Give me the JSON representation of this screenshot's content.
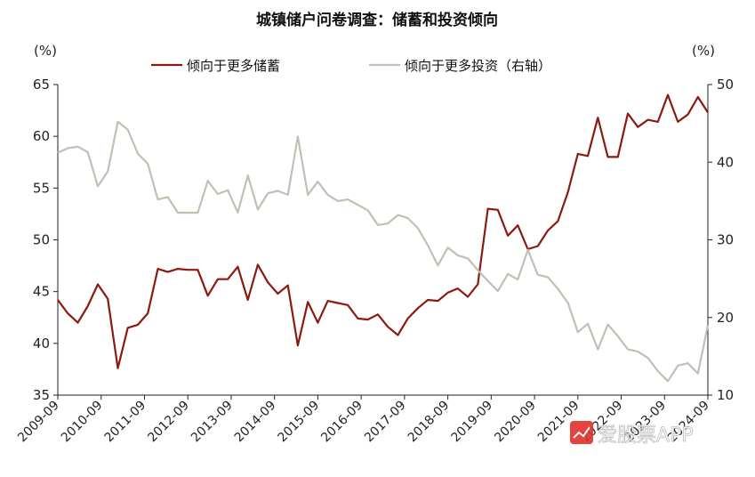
{
  "chart_data": {
    "type": "line",
    "title": "城镇储户问卷调查：储蓄和投资倾向",
    "left_unit": "(%)",
    "right_unit": "(%)",
    "ylim_left": [
      35,
      65
    ],
    "ylim_right": [
      10,
      50
    ],
    "yticks_left": [
      "35",
      "40",
      "45",
      "50",
      "55",
      "60",
      "65"
    ],
    "yticks_right": [
      "10",
      "20",
      "30",
      "40",
      "50"
    ],
    "x_tick_labels": [
      "2009-09",
      "2010-09",
      "2011-09",
      "2012-09",
      "2013-09",
      "2014-09",
      "2015-09",
      "2016-09",
      "2017-09",
      "2018-09",
      "2019-09",
      "2020-09",
      "2021-09",
      "2022-09",
      "2023-09",
      "2024-09"
    ],
    "legend_position": "top",
    "series": [
      {
        "name": "倾向于更多储蓄",
        "axis": "left",
        "color": "#8B1A10",
        "values": [
          44.2,
          42.9,
          42.0,
          43.6,
          45.7,
          44.3,
          37.6,
          41.5,
          41.8,
          42.9,
          47.2,
          46.9,
          47.2,
          47.1,
          47.1,
          44.6,
          46.2,
          46.2,
          47.4,
          44.2,
          47.6,
          45.9,
          44.8,
          45.6,
          39.8,
          44.0,
          42.0,
          44.1,
          43.9,
          43.7,
          42.4,
          42.3,
          42.8,
          41.6,
          40.8,
          42.4,
          43.4,
          44.2,
          44.1,
          44.9,
          45.3,
          44.5,
          45.7,
          53.0,
          52.9,
          50.4,
          51.4,
          49.1,
          49.4,
          50.9,
          51.8,
          54.6,
          58.3,
          58.1,
          61.8,
          58.0,
          58.0,
          62.2,
          60.9,
          61.6,
          61.4,
          64.0,
          61.4,
          62.1,
          63.8,
          62.3
        ]
      },
      {
        "name": "倾向于更多投资（右轴）",
        "axis": "right",
        "color": "#BFC1B4",
        "values": [
          41.2,
          41.8,
          42.0,
          41.3,
          36.9,
          38.8,
          45.2,
          44.2,
          41.1,
          39.8,
          35.2,
          35.5,
          33.5,
          33.5,
          33.5,
          37.6,
          35.9,
          36.4,
          33.5,
          38.3,
          33.9,
          36.0,
          36.3,
          35.8,
          43.3,
          35.8,
          37.5,
          35.8,
          35.0,
          35.2,
          34.5,
          33.8,
          31.9,
          32.1,
          33.2,
          32.8,
          31.5,
          29.3,
          26.7,
          29.0,
          28.0,
          27.6,
          26.1,
          24.7,
          23.4,
          25.6,
          24.9,
          28.7,
          25.5,
          25.2,
          23.7,
          21.9,
          18.1,
          19.2,
          15.9,
          19.1,
          17.6,
          15.9,
          15.6,
          14.8,
          13.1,
          11.8,
          13.8,
          14.1,
          12.8,
          19.0
        ]
      }
    ],
    "watermark_text": "爱股票APP"
  }
}
